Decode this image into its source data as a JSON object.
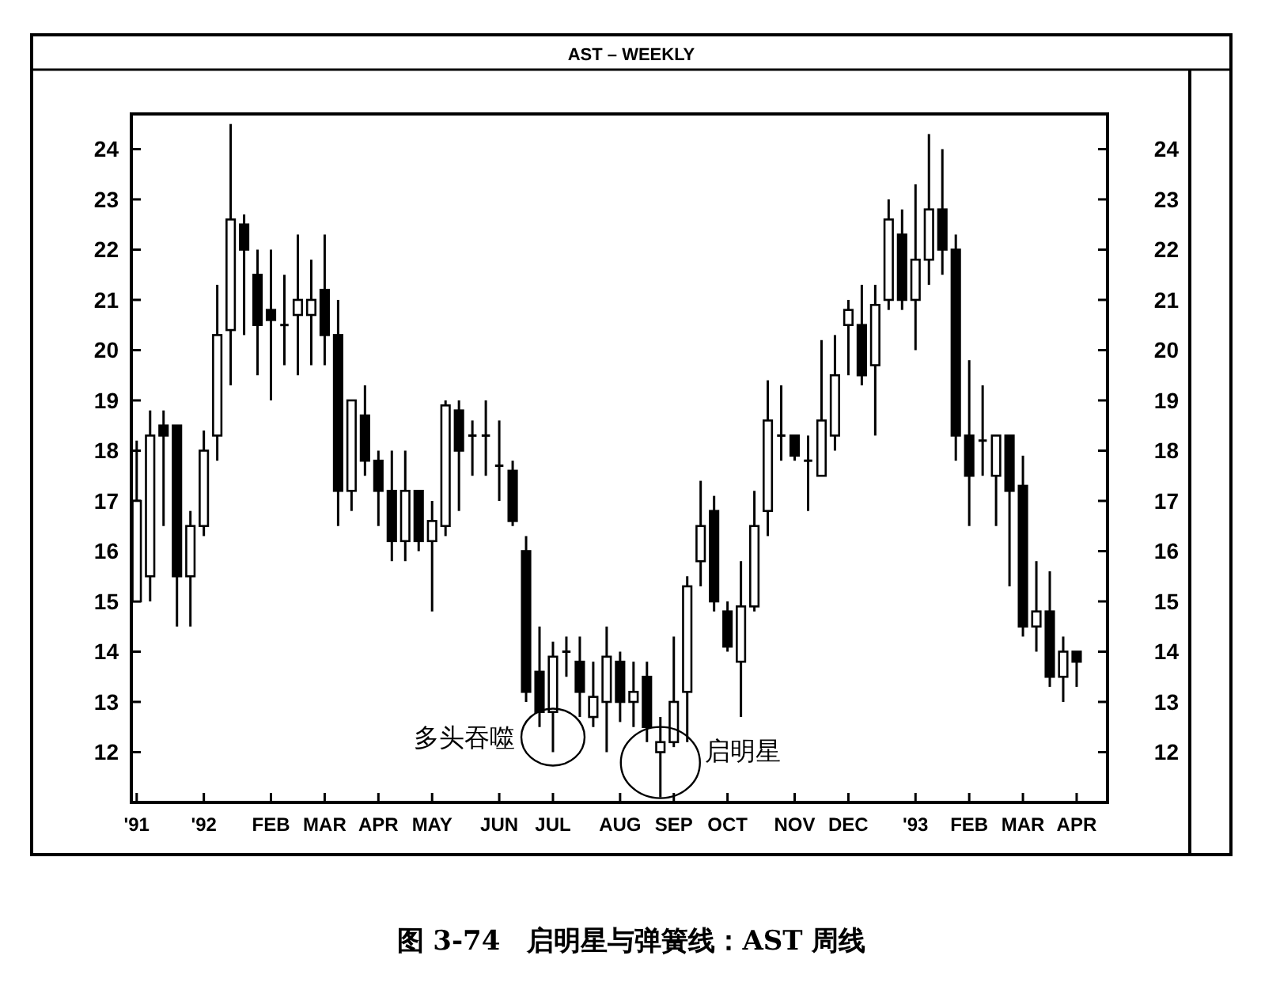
{
  "chart_data": {
    "type": "candlestick",
    "title": "AST – WEEKLY",
    "annotations": [
      {
        "text": "多头吞噬",
        "x": "JUL",
        "y": 12.3
      },
      "启明星",
      "图 3-74　启明星与弹簧线：AST 周线"
    ],
    "color": "#000000",
    "categories": [
      "'91",
      null,
      null,
      null,
      null,
      "'92",
      null,
      null,
      null,
      null,
      "FEB",
      null,
      null,
      null,
      "MAR",
      null,
      null,
      null,
      "APR",
      null,
      null,
      null,
      "MAY",
      null,
      null,
      null,
      null,
      "JUN",
      null,
      null,
      null,
      "JUL",
      null,
      null,
      null,
      null,
      "AUG",
      null,
      null,
      null,
      "SEP",
      null,
      null,
      null,
      "OCT",
      null,
      null,
      null,
      null,
      "NOV",
      null,
      null,
      null,
      "DEC",
      null,
      null,
      null,
      null,
      "'93",
      null,
      null,
      null,
      "FEB",
      null,
      null,
      null,
      "MAR",
      null,
      null,
      null,
      "APR"
    ],
    "ohlc": [
      [
        15,
        18.2,
        15,
        17
      ],
      [
        15.5,
        18.8,
        15,
        18.3
      ],
      [
        18.5,
        18.8,
        16.5,
        18.3
      ],
      [
        18.5,
        18.5,
        14.5,
        15.5
      ],
      [
        15.5,
        16.8,
        14.5,
        16.5
      ],
      [
        16.5,
        18.4,
        16.3,
        18
      ],
      [
        18.3,
        21.3,
        17.8,
        20.3
      ],
      [
        20.4,
        24.5,
        19.3,
        22.6
      ],
      [
        22.5,
        22.7,
        20.3,
        22
      ],
      [
        21.5,
        22,
        19.5,
        20.5
      ],
      [
        20.8,
        22,
        19,
        20.6
      ],
      [
        20.5,
        21.5,
        19.7,
        20.5
      ],
      [
        20.7,
        22.3,
        19.5,
        21
      ],
      [
        20.7,
        21.8,
        19.7,
        21
      ],
      [
        21.2,
        22.3,
        19.7,
        20.3
      ],
      [
        20.3,
        21,
        16.5,
        17.2
      ],
      [
        17.2,
        19,
        16.8,
        19
      ],
      [
        18.7,
        19.3,
        17.5,
        17.8
      ],
      [
        17.8,
        18,
        16.5,
        17.2
      ],
      [
        17.2,
        18,
        15.8,
        16.2
      ],
      [
        16.2,
        18,
        15.8,
        17.2
      ],
      [
        17.2,
        17.2,
        16,
        16.2
      ],
      [
        16.2,
        17,
        14.8,
        16.6
      ],
      [
        16.5,
        19,
        16.3,
        18.9
      ],
      [
        18.8,
        19,
        16.8,
        18
      ],
      [
        18.3,
        18.6,
        17.5,
        18.3
      ],
      [
        18.3,
        19,
        17.5,
        18.3
      ],
      [
        17.7,
        18.6,
        17,
        17.7
      ],
      [
        17.6,
        17.8,
        16.5,
        16.6
      ],
      [
        16,
        16.3,
        13,
        13.2
      ],
      [
        13.6,
        14.5,
        12.5,
        12.8
      ],
      [
        12.8,
        14.2,
        12,
        13.9
      ],
      [
        14,
        14.3,
        13.5,
        14
      ],
      [
        13.8,
        14.3,
        12.7,
        13.2
      ],
      [
        12.7,
        13.8,
        12.5,
        13.1
      ],
      [
        13,
        14.5,
        12,
        13.9
      ],
      [
        13.8,
        14,
        12.6,
        13
      ],
      [
        13,
        13.8,
        12.5,
        13.2
      ],
      [
        13.5,
        13.8,
        12.2,
        12.5
      ],
      [
        12,
        12.7,
        11.1,
        12.2
      ],
      [
        12.2,
        14.3,
        12.1,
        13
      ],
      [
        13.2,
        15.5,
        12.2,
        15.3
      ],
      [
        15.8,
        17.4,
        15.3,
        16.5
      ],
      [
        16.8,
        17.1,
        14.8,
        15
      ],
      [
        14.8,
        15,
        14,
        14.1
      ],
      [
        13.8,
        15.8,
        12.7,
        14.9
      ],
      [
        14.9,
        17.2,
        14.8,
        16.5
      ],
      [
        16.8,
        19.4,
        16.3,
        18.6
      ],
      [
        18.3,
        19.3,
        17.8,
        18.3
      ],
      [
        18.3,
        18.3,
        17.8,
        17.9
      ],
      [
        17.8,
        18.3,
        16.8,
        17.8
      ],
      [
        17.5,
        20.2,
        17.5,
        18.6
      ],
      [
        18.3,
        20.3,
        18,
        19.5
      ],
      [
        20.5,
        21,
        19.5,
        20.8
      ],
      [
        20.5,
        21.3,
        19.3,
        19.5
      ],
      [
        19.7,
        21.3,
        18.3,
        20.9
      ],
      [
        21,
        23,
        20.8,
        22.6
      ],
      [
        22.3,
        22.8,
        20.8,
        21
      ],
      [
        21,
        23.3,
        20,
        21.8
      ],
      [
        21.8,
        24.3,
        21.3,
        22.8
      ],
      [
        22.8,
        24,
        21.5,
        22
      ],
      [
        22,
        22.3,
        17.8,
        18.3
      ],
      [
        18.3,
        19.8,
        16.5,
        17.5
      ],
      [
        18.2,
        19.3,
        17.5,
        18.2
      ],
      [
        17.5,
        18.3,
        16.5,
        18.3
      ],
      [
        18.3,
        18.3,
        15.3,
        17.2
      ],
      [
        17.3,
        17.9,
        14.3,
        14.5
      ],
      [
        14.5,
        15.8,
        14,
        14.8
      ],
      [
        14.8,
        15.6,
        13.3,
        13.5
      ],
      [
        13.5,
        14.3,
        13,
        14
      ],
      [
        14,
        14,
        13.3,
        13.8
      ]
    ],
    "ylim": [
      11,
      24.7
    ],
    "yticks": [
      12,
      13,
      14,
      15,
      16,
      17,
      18,
      19,
      20,
      21,
      22,
      23,
      24
    ],
    "y2lim": [
      11,
      24.7
    ],
    "y2ticks": [
      12,
      13,
      14,
      15,
      16,
      17,
      18,
      19,
      20,
      21,
      22,
      23,
      24
    ]
  }
}
